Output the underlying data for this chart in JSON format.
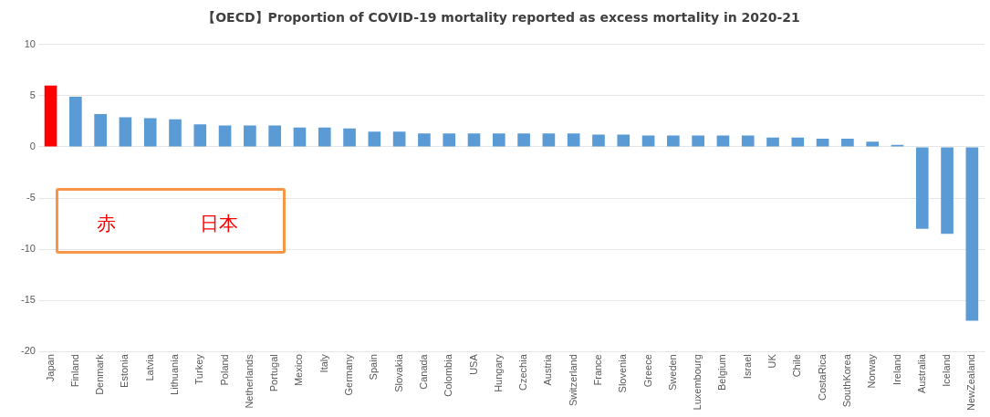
{
  "chart_data": {
    "type": "bar",
    "title": "【OECD】Proportion of COVID-19 mortality reported as excess mortality in 2020-21",
    "categories": [
      "Japan",
      "Finland",
      "Denmark",
      "Estonia",
      "Latvia",
      "Lithuania",
      "Turkey",
      "Poland",
      "Netherlands",
      "Portugal",
      "Mexico",
      "Italy",
      "Germany",
      "Spain",
      "Slovakia",
      "Canada",
      "Colombia",
      "USA",
      "Hungary",
      "Czechia",
      "Austria",
      "Switzerland",
      "France",
      "Slovenia",
      "Greece",
      "Sweden",
      "Luxembourg",
      "Belgium",
      "Israel",
      "UK",
      "Chile",
      "CostaRica",
      "SouthKorea",
      "Norway",
      "Ireland",
      "Australia",
      "Iceland",
      "NewZealand"
    ],
    "values": [
      6.0,
      4.9,
      3.2,
      2.9,
      2.8,
      2.7,
      2.2,
      2.1,
      2.1,
      2.1,
      1.9,
      1.9,
      1.8,
      1.5,
      1.5,
      1.3,
      1.3,
      1.3,
      1.3,
      1.3,
      1.3,
      1.3,
      1.2,
      1.2,
      1.1,
      1.1,
      1.1,
      1.1,
      1.1,
      0.9,
      0.9,
      0.8,
      0.8,
      0.5,
      0.2,
      -8,
      -8.5,
      -17
    ],
    "colors": [
      "#ff0000",
      "#5b9bd5",
      "#5b9bd5",
      "#5b9bd5",
      "#5b9bd5",
      "#5b9bd5",
      "#5b9bd5",
      "#5b9bd5",
      "#5b9bd5",
      "#5b9bd5",
      "#5b9bd5",
      "#5b9bd5",
      "#5b9bd5",
      "#5b9bd5",
      "#5b9bd5",
      "#5b9bd5",
      "#5b9bd5",
      "#5b9bd5",
      "#5b9bd5",
      "#5b9bd5",
      "#5b9bd5",
      "#5b9bd5",
      "#5b9bd5",
      "#5b9bd5",
      "#5b9bd5",
      "#5b9bd5",
      "#5b9bd5",
      "#5b9bd5",
      "#5b9bd5",
      "#5b9bd5",
      "#5b9bd5",
      "#5b9bd5",
      "#5b9bd5",
      "#5b9bd5",
      "#5b9bd5",
      "#5b9bd5",
      "#5b9bd5",
      "#5b9bd5"
    ],
    "ylim": [
      -20,
      10
    ],
    "yticks": [
      -20,
      -15,
      -10,
      -5,
      0,
      5,
      10
    ],
    "grid": "y",
    "annotations": [
      "赤",
      "日本"
    ]
  }
}
